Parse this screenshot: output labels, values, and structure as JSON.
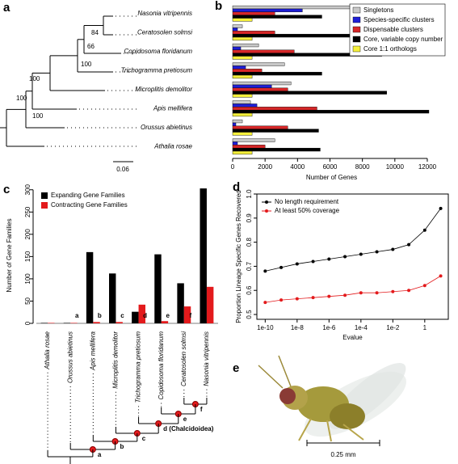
{
  "panel_labels": [
    "a",
    "b",
    "c",
    "d",
    "e"
  ],
  "tree_a": {
    "support": [
      84,
      66,
      100,
      100,
      100,
      100
    ],
    "scale": "0.06"
  },
  "tree_c": {
    "nodes": [
      {
        "label": "a"
      },
      {
        "label": "b"
      },
      {
        "label": "c"
      },
      {
        "label": "d (Chalcidoidea)"
      },
      {
        "label": "e"
      },
      {
        "label": "f"
      }
    ]
  },
  "image_e": {
    "scale": "0.25 mm"
  },
  "chart_data": [
    {
      "type": "bar",
      "orientation": "horizontal",
      "xlabel": "Number of Genes",
      "categories": [
        "Nasonia vitripennis",
        "Ceratosolen solmsi",
        "Copidosoma floridanum",
        "Trichogramma pretiosum",
        "Microplitis demolitor",
        "Apis mellifera",
        "Orussus abietinus",
        "Athalia rosae"
      ],
      "series": [
        {
          "name": "Singletons",
          "color": "#c8c8c8",
          "values": [
            10000,
            600,
            1600,
            3200,
            3600,
            1100,
            600,
            2600
          ]
        },
        {
          "name": "Species-specific clusters",
          "color": "#1f1fd6",
          "values": [
            4300,
            300,
            500,
            800,
            2400,
            1500,
            200,
            300
          ]
        },
        {
          "name": "Dispensable clusters",
          "color": "#d62728",
          "values": [
            2600,
            2600,
            3800,
            1800,
            3400,
            5200,
            3400,
            2000
          ]
        },
        {
          "name": "Core, variable copy number",
          "color": "#000000",
          "values": [
            5500,
            11800,
            9200,
            5500,
            9500,
            12100,
            5300,
            5400
          ]
        },
        {
          "name": "Core 1:1 orthologs",
          "color": "#f5f03c",
          "values": [
            1200,
            1200,
            1200,
            1200,
            1200,
            1200,
            1200,
            1200
          ]
        }
      ],
      "xlim": [
        0,
        12200
      ],
      "xticks": [
        0,
        2000,
        4000,
        6000,
        8000,
        10000,
        12000
      ],
      "legend": "top-right"
    },
    {
      "type": "bar",
      "orientation": "vertical",
      "ylabel": "Number of Gene Families",
      "categories": [
        "Athalia rosae",
        "Orussus abietinus",
        "Apis mellifera",
        "Microplitis demolitor",
        "Trichogramma pretiosum",
        "Copidosoma floridanum",
        "Ceratosolen solmsi",
        "Nasonia vitripennis"
      ],
      "series": [
        {
          "name": "Expanding Gene Families",
          "color": "#000000",
          "values": [
            1,
            1,
            160,
            112,
            26,
            155,
            90,
            303
          ]
        },
        {
          "name": "Contracting Gene Families",
          "color": "#e31a1c",
          "values": [
            1,
            1,
            3,
            3,
            42,
            5,
            38,
            82
          ]
        }
      ],
      "annotations": [
        {
          "text": "a"
        },
        {
          "text": "b"
        },
        {
          "text": "c"
        },
        {
          "text": "d"
        },
        {
          "text": "e"
        },
        {
          "text": "f"
        }
      ],
      "ylim": [
        0,
        305
      ],
      "yticks": [
        0,
        50,
        100,
        150,
        200,
        250,
        300
      ],
      "legend": "top-left"
    },
    {
      "type": "line",
      "xlabel": "Evalue",
      "ylabel": "Proportion Lineage Specific Genes Recovered",
      "xscale": "log",
      "x": [
        1e-10,
        1e-09,
        1e-08,
        1e-07,
        1e-06,
        1e-05,
        0.0001,
        0.001,
        0.01,
        0.1,
        1,
        10
      ],
      "series": [
        {
          "name": "No length requirement",
          "color": "#000000",
          "values": [
            0.68,
            0.695,
            0.71,
            0.72,
            0.73,
            0.74,
            0.75,
            0.76,
            0.77,
            0.79,
            0.85,
            0.94
          ]
        },
        {
          "name": "At least 50% coverage",
          "color": "#e31a1c",
          "values": [
            0.55,
            0.56,
            0.565,
            0.57,
            0.575,
            0.58,
            0.59,
            0.59,
            0.595,
            0.6,
            0.62,
            0.66
          ]
        }
      ],
      "xlim": [
        3e-11,
        30
      ],
      "xticks": [
        {
          "value": 1e-10,
          "label": "1e-10"
        },
        {
          "value": 1e-08,
          "label": "1e-8"
        },
        {
          "value": 1e-06,
          "label": "1e-6"
        },
        {
          "value": 0.0001,
          "label": "1e-4"
        },
        {
          "value": 0.01,
          "label": "1e-2"
        },
        1
      ],
      "ylim": [
        0.48,
        1.0
      ],
      "yticks": [
        0.5,
        0.6,
        0.7,
        0.8,
        0.9,
        {
          "value": 1,
          "label": "1.0"
        }
      ],
      "legend": "top-left"
    }
  ]
}
